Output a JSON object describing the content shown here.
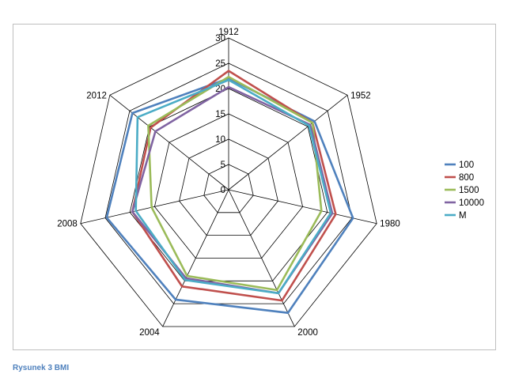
{
  "chart_data": {
    "type": "radar",
    "categories": [
      "1912",
      "1952",
      "1980",
      "2000",
      "2004",
      "2008",
      "2012"
    ],
    "rmax": 30,
    "ticks": [
      0,
      5,
      10,
      15,
      20,
      25,
      30
    ],
    "tick_labels": [
      "0",
      "5",
      "10",
      "15",
      "20",
      "25",
      "30"
    ],
    "grid": true,
    "legend_position": "right",
    "series": [
      {
        "name": "100",
        "color": "#4f81bd",
        "values": [
          22.0,
          21.7,
          25.2,
          27.0,
          24.1,
          24.7,
          24.3
        ]
      },
      {
        "name": "800",
        "color": "#c0504d",
        "values": [
          23.5,
          21.2,
          21.7,
          24.3,
          21.2,
          19.5,
          19.7
        ]
      },
      {
        "name": "1500",
        "color": "#9bbb59",
        "values": [
          22.3,
          21.2,
          18.8,
          22.0,
          18.9,
          15.6,
          20.3
        ]
      },
      {
        "name": "10000",
        "color": "#8064a2",
        "values": [
          20.3,
          20.6,
          21.0,
          22.7,
          19.4,
          19.5,
          18.5
        ]
      },
      {
        "name": "M",
        "color": "#4bacc6",
        "values": [
          21.7,
          20.3,
          20.7,
          22.7,
          19.8,
          18.8,
          23.0
        ]
      }
    ]
  },
  "caption": "Rysunek 3 BMI"
}
